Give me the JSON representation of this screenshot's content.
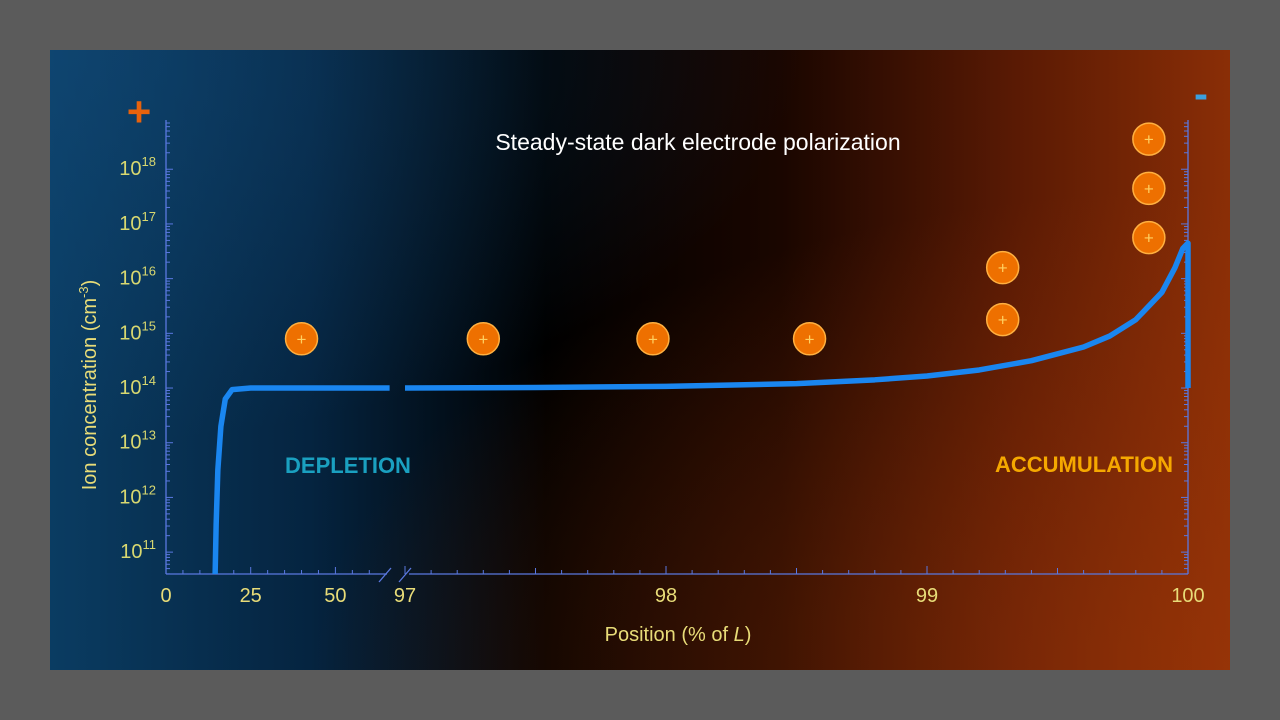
{
  "chart_data": {
    "type": "line",
    "title": "Steady-state dark electrode polarization",
    "xlabel_prefix": "Position (% of ",
    "xlabel_italic": "L",
    "xlabel_suffix": ")",
    "ylabel_prefix": "Ion concentration (cm",
    "ylabel_sup": "-3",
    "ylabel_suffix": ")",
    "y_scale": "log",
    "ylim_exp": [
      10.6,
      18.9
    ],
    "y_tick_exponents": [
      "11",
      "12",
      "13",
      "14",
      "15",
      "16",
      "17",
      "18"
    ],
    "y_tick_base": "10",
    "x_axis_broken": true,
    "x_segment1": {
      "range": [
        0,
        67
      ],
      "ticks": [
        "0",
        "25",
        "50"
      ]
    },
    "x_segment2": {
      "range": [
        97,
        100
      ],
      "ticks": [
        "97",
        "98",
        "99",
        "100"
      ]
    },
    "series": [
      {
        "color": "#1a86f0",
        "segment1": [
          [
            14.5,
            10.6
          ],
          [
            14.8,
            11.5
          ],
          [
            15.3,
            12.5
          ],
          [
            16.2,
            13.3
          ],
          [
            17.5,
            13.8
          ],
          [
            19.5,
            13.97
          ],
          [
            25,
            14.0
          ],
          [
            40,
            14.0
          ],
          [
            55,
            14.0
          ],
          [
            66,
            14.0
          ]
        ],
        "segment2": [
          [
            97.0,
            14.0
          ],
          [
            97.5,
            14.01
          ],
          [
            98.0,
            14.03
          ],
          [
            98.5,
            14.08
          ],
          [
            98.8,
            14.15
          ],
          [
            99.0,
            14.22
          ],
          [
            99.2,
            14.33
          ],
          [
            99.4,
            14.5
          ],
          [
            99.6,
            14.75
          ],
          [
            99.7,
            14.95
          ],
          [
            99.8,
            15.25
          ],
          [
            99.9,
            15.75
          ],
          [
            99.95,
            16.2
          ],
          [
            99.98,
            16.55
          ],
          [
            100.0,
            16.65
          ],
          [
            100.0,
            14.0
          ]
        ]
      }
    ],
    "annotations": {
      "left_region": "DEPLETION",
      "right_region": "ACCUMULATION",
      "left_electrode": "+",
      "right_electrode": "-",
      "ion_symbol": "+"
    },
    "ion_markers": [
      {
        "segment": 1,
        "x": 40,
        "y_exp": 14.9
      },
      {
        "segment": 2,
        "x": 97.3,
        "y_exp": 14.9
      },
      {
        "segment": 2,
        "x": 97.95,
        "y_exp": 14.9
      },
      {
        "segment": 2,
        "x": 98.55,
        "y_exp": 14.9
      },
      {
        "segment": 2,
        "x": 99.29,
        "y_exp": 15.25
      },
      {
        "segment": 2,
        "x": 99.29,
        "y_exp": 16.2
      },
      {
        "segment": 2,
        "x": 99.85,
        "y_exp": 16.75
      },
      {
        "segment": 2,
        "x": 99.85,
        "y_exp": 17.65
      },
      {
        "segment": 2,
        "x": 99.85,
        "y_exp": 18.55
      }
    ],
    "colors": {
      "axis": "#5a78e0",
      "tick_label": "#d8d870",
      "title": "#ffffff",
      "depletion": "#1aa0c0",
      "accumulation": "#f5a800",
      "plus_electrode": "#e8620c",
      "minus_electrode": "#3aa0e0",
      "ion_fill": "#ee7000",
      "ion_stroke": "#ffb040",
      "ion_symbol": "#ffd060"
    }
  }
}
